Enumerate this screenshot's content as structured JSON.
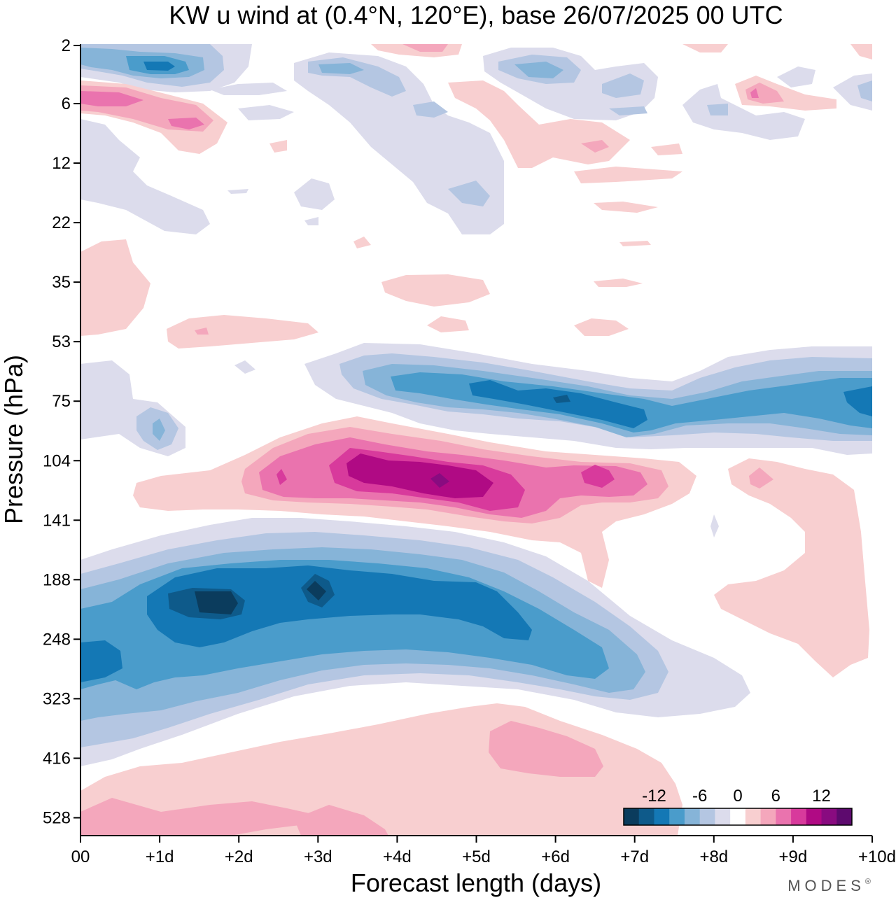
{
  "chart_data": {
    "type": "heatmap",
    "title": "KW u wind at (0.4°N, 120°E),  base 26/07/2025  00 UTC",
    "xlabel": "Forecast length (days)",
    "ylabel": "Pressure (hPa)",
    "x_ticks": [
      "00",
      "+1d",
      "+2d",
      "+3d",
      "+4d",
      "+5d",
      "+6d",
      "+7d",
      "+8d",
      "+9d",
      "+10d"
    ],
    "xlim": [
      0,
      10
    ],
    "y_ticks": [
      2,
      6,
      12,
      22,
      35,
      53,
      75,
      104,
      141,
      188,
      248,
      323,
      416,
      528
    ],
    "y_tick_labels": [
      "2",
      "6",
      "12",
      "22",
      "35",
      "53",
      "75",
      "104",
      "141",
      "188",
      "248",
      "323",
      "416",
      "528"
    ],
    "ylim": [
      2,
      600
    ],
    "colorbar": {
      "labels": [
        {
          "text": "-12",
          "value": -12
        },
        {
          "text": "-6",
          "value": -6
        },
        {
          "text": "0",
          "value": 0
        },
        {
          "text": "6",
          "value": 6
        },
        {
          "text": "12",
          "value": 12
        }
      ],
      "levels": [
        -15,
        -12,
        -10,
        -8,
        -6,
        -4,
        -2,
        2,
        4,
        6,
        8,
        10,
        12,
        14
      ],
      "colors": [
        "#0b3c5d",
        "#0e5a8a",
        "#1478b5",
        "#4a9ccb",
        "#86b4d8",
        "#b4c6e2",
        "#dcdcec",
        "#ffffff",
        "#f8cfd0",
        "#f4a7bc",
        "#ea73ae",
        "#d83a9c",
        "#b00a84",
        "#890b80",
        "#5d0a6e"
      ]
    },
    "features": [
      {
        "name": "easterly jet mid-troposphere",
        "value": -12,
        "x": [
          1.5,
          2.1
        ],
        "p": [
          180,
          230
        ]
      },
      {
        "name": "easterly core 2",
        "value": -12,
        "x": [
          2.85,
          3.1
        ],
        "p": [
          170,
          205
        ]
      },
      {
        "name": "easterly core 3",
        "value": -10,
        "x": [
          4.6,
          5.6
        ],
        "p": [
          180,
          260
        ]
      },
      {
        "name": "westerly core",
        "value": 14,
        "x": [
          4.4,
          4.6
        ],
        "p": [
          115,
          125
        ]
      },
      {
        "name": "westerly max",
        "value": 12,
        "x": [
          3.4,
          5.2
        ],
        "p": [
          104,
          135
        ]
      },
      {
        "name": "lower strat easterly",
        "value": -10,
        "x": [
          6.0,
          7.0
        ],
        "p": [
          75,
          90
        ]
      },
      {
        "name": "upper strat westerly",
        "value": 10,
        "x": [
          0.2,
          1.6
        ],
        "p": [
          5,
          8
        ]
      },
      {
        "name": "upper strat easterly",
        "value": -10,
        "x": [
          0.7,
          1.3
        ],
        "p": [
          2.5,
          3.2
        ]
      }
    ],
    "brand": "MODES",
    "brand_mark": "®"
  }
}
